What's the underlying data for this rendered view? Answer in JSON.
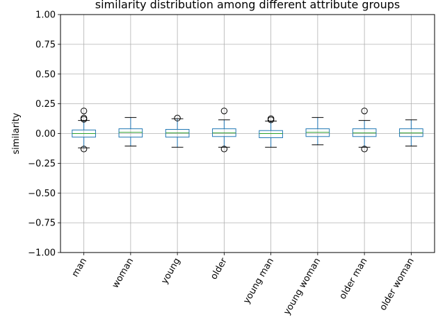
{
  "chart_data": {
    "type": "box",
    "title": "similarity distribution among different attribute groups",
    "xlabel": "",
    "ylabel": "similarity",
    "ylim": [
      -1.0,
      1.0
    ],
    "yticks": [
      -1.0,
      -0.75,
      -0.5,
      -0.25,
      0.0,
      0.25,
      0.5,
      0.75,
      1.0
    ],
    "ytick_labels": [
      "−1.00",
      "−0.75",
      "−0.50",
      "−0.25",
      "0.00",
      "0.25",
      "0.50",
      "0.75",
      "1.00"
    ],
    "grid": true,
    "categories": [
      "man",
      "woman",
      "young",
      "older",
      "young man",
      "young woman",
      "older man",
      "older woman"
    ],
    "boxes": [
      {
        "whisker_low": -0.12,
        "q1": -0.03,
        "median": 0.0,
        "q3": 0.03,
        "whisker_high": 0.11,
        "outliers": [
          0.19,
          0.13,
          0.12,
          -0.13
        ]
      },
      {
        "whisker_low": -0.105,
        "q1": -0.03,
        "median": 0.01,
        "q3": 0.04,
        "whisker_high": 0.135,
        "outliers": []
      },
      {
        "whisker_low": -0.115,
        "q1": -0.03,
        "median": 0.005,
        "q3": 0.035,
        "whisker_high": 0.125,
        "outliers": [
          0.13
        ]
      },
      {
        "whisker_low": -0.115,
        "q1": -0.025,
        "median": 0.005,
        "q3": 0.04,
        "whisker_high": 0.115,
        "outliers": [
          0.19,
          -0.13
        ]
      },
      {
        "whisker_low": -0.115,
        "q1": -0.035,
        "median": 0.0,
        "q3": 0.025,
        "whisker_high": 0.105,
        "outliers": [
          0.125,
          0.115
        ]
      },
      {
        "whisker_low": -0.095,
        "q1": -0.025,
        "median": 0.01,
        "q3": 0.04,
        "whisker_high": 0.135,
        "outliers": []
      },
      {
        "whisker_low": -0.115,
        "q1": -0.025,
        "median": 0.005,
        "q3": 0.04,
        "whisker_high": 0.11,
        "outliers": [
          0.19,
          -0.13
        ]
      },
      {
        "whisker_low": -0.105,
        "q1": -0.025,
        "median": 0.005,
        "q3": 0.04,
        "whisker_high": 0.115,
        "outliers": []
      }
    ],
    "colors": {
      "box": "#1f77b4",
      "median": "#2ca02c",
      "whisker": "#000000",
      "grid": "#b0b0b0",
      "axes": "#000000"
    }
  }
}
